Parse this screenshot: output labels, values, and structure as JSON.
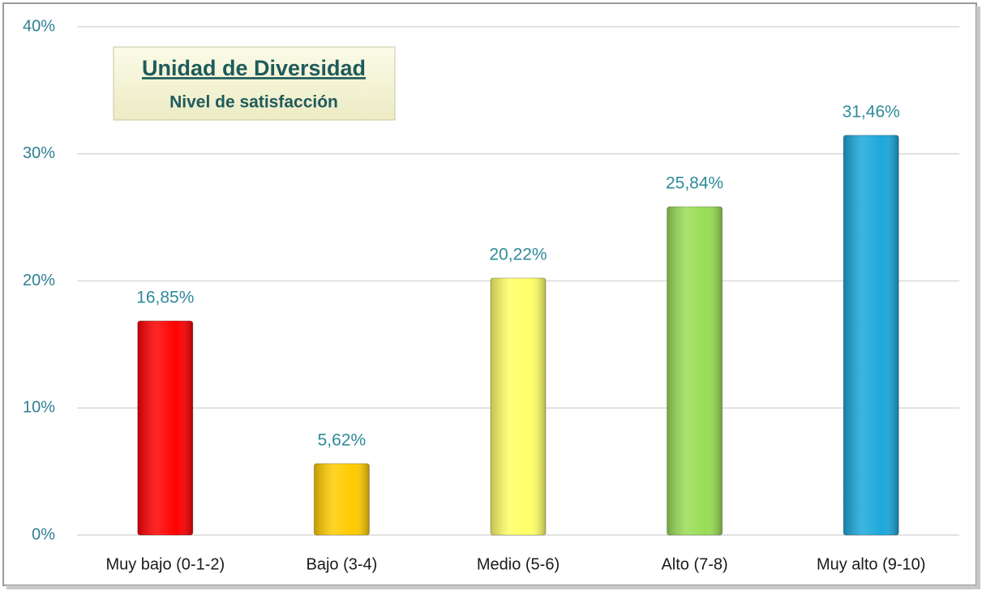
{
  "chart_data": {
    "type": "bar",
    "title": "Unidad de Diversidad",
    "subtitle": "Nivel de satisfacción",
    "categories": [
      "Muy bajo (0-1-2)",
      "Bajo (3-4)",
      "Medio (5-6)",
      "Alto (7-8)",
      "Muy alto (9-10)"
    ],
    "values": [
      16.85,
      5.62,
      20.22,
      25.84,
      31.46
    ],
    "value_labels": [
      "16,85%",
      "5,62%",
      "20,22%",
      "25,84%",
      "31,46%"
    ],
    "colors": [
      "#ff0000",
      "#ffcc00",
      "#ffff66",
      "#99dd55",
      "#1ba8da"
    ],
    "ylim": [
      0,
      40
    ],
    "yticks": [
      {
        "value": 0,
        "label": "0%"
      },
      {
        "value": 10,
        "label": "10%"
      },
      {
        "value": 20,
        "label": "20%"
      },
      {
        "value": 30,
        "label": "30%"
      },
      {
        "value": 40,
        "label": "40%"
      }
    ],
    "grid": true
  }
}
